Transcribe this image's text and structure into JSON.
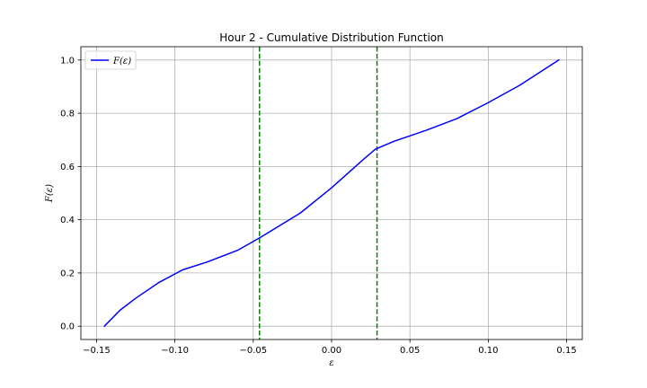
{
  "chart_data": {
    "type": "line",
    "title": "Hour 2 - Cumulative Distribution Function",
    "xlabel": "ε",
    "ylabel": "F(ε)",
    "xlim": [
      -0.16,
      0.16
    ],
    "ylim": [
      -0.05,
      1.05
    ],
    "xticks": [
      -0.15,
      -0.1,
      -0.05,
      0.0,
      0.05,
      0.1,
      0.15
    ],
    "xtick_labels": [
      "−0.15",
      "−0.10",
      "−0.05",
      "0.00",
      "0.05",
      "0.10",
      "0.15"
    ],
    "yticks": [
      0.0,
      0.2,
      0.4,
      0.6,
      0.8,
      1.0
    ],
    "ytick_labels": [
      "0.0",
      "0.2",
      "0.4",
      "0.6",
      "0.8",
      "1.0"
    ],
    "grid": true,
    "legend": {
      "position": "top-left",
      "entries": [
        {
          "label": "F(ε)",
          "color": "#0000ff"
        }
      ]
    },
    "series": [
      {
        "name": "F(ε)",
        "color": "#0000ff",
        "x": [
          -0.145,
          -0.135,
          -0.125,
          -0.11,
          -0.095,
          -0.08,
          -0.06,
          -0.045,
          -0.02,
          0.0,
          0.02,
          0.028,
          0.04,
          0.06,
          0.08,
          0.1,
          0.12,
          0.145
        ],
        "y": [
          0.0,
          0.06,
          0.105,
          0.165,
          0.212,
          0.24,
          0.285,
          0.335,
          0.425,
          0.52,
          0.625,
          0.665,
          0.695,
          0.735,
          0.78,
          0.84,
          0.905,
          1.0
        ]
      }
    ],
    "vlines": [
      {
        "x": -0.046,
        "color": "#008000",
        "style": "dashed"
      },
      {
        "x": 0.029,
        "color": "#008000",
        "style": "dashed"
      }
    ]
  }
}
